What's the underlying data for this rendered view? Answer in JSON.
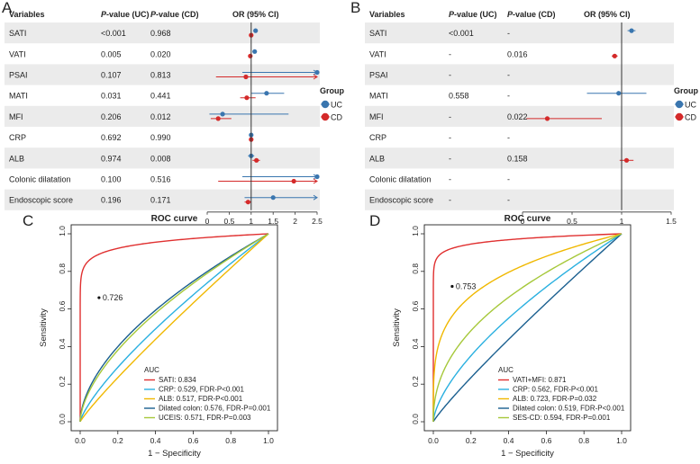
{
  "colors": {
    "uc": "#3a76af",
    "cd": "#d42a2a",
    "band": "#ebebeb"
  },
  "chart_data": [
    {
      "type": "forest",
      "panel_label": "A",
      "columns": [
        "Variables",
        "P-value (UC)",
        "P-value (CD)",
        "OR (95% CI)"
      ],
      "rows": [
        {
          "variable": "SATI",
          "p_uc": "<0.001",
          "p_cd": "0.968",
          "uc": {
            "or": 1.1,
            "lo": 1.06,
            "hi": 1.14
          },
          "cd": {
            "or": 1.0,
            "lo": 0.98,
            "hi": 1.02
          }
        },
        {
          "variable": "VATI",
          "p_uc": "0.005",
          "p_cd": "0.020",
          "uc": {
            "or": 1.08,
            "lo": 1.03,
            "hi": 1.12
          },
          "cd": {
            "or": 0.98,
            "lo": 0.96,
            "hi": 1.0
          }
        },
        {
          "variable": "PSAI",
          "p_uc": "0.107",
          "p_cd": "0.813",
          "uc": {
            "or": 2.6,
            "lo": 0.8,
            "hi": 2.6
          },
          "cd": {
            "or": 0.88,
            "lo": 0.2,
            "hi": 2.6
          }
        },
        {
          "variable": "MATI",
          "p_uc": "0.031",
          "p_cd": "0.441",
          "uc": {
            "or": 1.35,
            "lo": 1.0,
            "hi": 1.75
          },
          "cd": {
            "or": 0.9,
            "lo": 0.75,
            "hi": 1.1
          }
        },
        {
          "variable": "MFI",
          "p_uc": "0.206",
          "p_cd": "0.012",
          "uc": {
            "or": 0.35,
            "lo": 0.05,
            "hi": 1.85
          },
          "cd": {
            "or": 0.25,
            "lo": 0.08,
            "hi": 0.55
          }
        },
        {
          "variable": "CRP",
          "p_uc": "0.692",
          "p_cd": "0.990",
          "uc": {
            "or": 1.0,
            "lo": 0.98,
            "hi": 1.02
          },
          "cd": {
            "or": 1.0,
            "lo": 0.98,
            "hi": 1.02
          }
        },
        {
          "variable": "ALB",
          "p_uc": "0.974",
          "p_cd": "0.008",
          "uc": {
            "or": 1.0,
            "lo": 0.93,
            "hi": 1.07
          },
          "cd": {
            "or": 1.12,
            "lo": 1.03,
            "hi": 1.2
          }
        },
        {
          "variable": "Colonic dilatation",
          "p_uc": "0.100",
          "p_cd": "0.516",
          "uc": {
            "or": 2.6,
            "lo": 0.8,
            "hi": 2.6
          },
          "cd": {
            "or": 1.97,
            "lo": 0.25,
            "hi": 2.6
          }
        },
        {
          "variable": "Endoscopic score",
          "p_uc": "0.196",
          "p_cd": "0.171",
          "uc": {
            "or": 1.5,
            "lo": 0.85,
            "hi": 2.6
          },
          "cd": {
            "or": 0.93,
            "lo": 0.85,
            "hi": 1.0
          }
        }
      ],
      "xlim": [
        0,
        2.5
      ],
      "xticks": [
        "0",
        "0.5",
        "1",
        "1.5",
        "2",
        "2.5"
      ],
      "reference": 1,
      "legend": {
        "title": "Group",
        "entries": [
          "UC",
          "CD"
        ]
      }
    },
    {
      "type": "forest",
      "panel_label": "B",
      "columns": [
        "Variables",
        "P-value (UC)",
        "P-value (CD)",
        "OR (95% CI)"
      ],
      "rows": [
        {
          "variable": "SATI",
          "p_uc": "<0.001",
          "p_cd": "-",
          "uc": {
            "or": 1.1,
            "lo": 1.06,
            "hi": 1.14
          },
          "cd": null
        },
        {
          "variable": "VATI",
          "p_uc": "-",
          "p_cd": "0.016",
          "uc": null,
          "cd": {
            "or": 0.93,
            "lo": 0.9,
            "hi": 0.96
          }
        },
        {
          "variable": "PSAI",
          "p_uc": "-",
          "p_cd": "-",
          "uc": null,
          "cd": null
        },
        {
          "variable": "MATI",
          "p_uc": "0.558",
          "p_cd": "-",
          "uc": {
            "or": 0.97,
            "lo": 0.65,
            "hi": 1.25
          },
          "cd": null
        },
        {
          "variable": "MFI",
          "p_uc": "-",
          "p_cd": "0.022",
          "uc": null,
          "cd": {
            "or": 0.25,
            "lo": 0.04,
            "hi": 0.8
          }
        },
        {
          "variable": "CRP",
          "p_uc": "-",
          "p_cd": "-",
          "uc": null,
          "cd": null
        },
        {
          "variable": "ALB",
          "p_uc": "-",
          "p_cd": "0.158",
          "uc": null,
          "cd": {
            "or": 1.05,
            "lo": 0.98,
            "hi": 1.12
          }
        },
        {
          "variable": "Colonic dilatation",
          "p_uc": "-",
          "p_cd": "-",
          "uc": null,
          "cd": null
        },
        {
          "variable": "Endoscopic score",
          "p_uc": "-",
          "p_cd": "-",
          "uc": null,
          "cd": null
        }
      ],
      "xlim": [
        0,
        1.5
      ],
      "xticks": [
        "0",
        "0.5",
        "1",
        "1.5"
      ],
      "reference": 1,
      "legend": {
        "title": "Group",
        "entries": [
          "UC",
          "CD"
        ]
      }
    },
    {
      "type": "roc",
      "panel_label": "C",
      "title": "ROC curve",
      "xlabel": "1 − Specificity",
      "ylabel": "Sensitivity",
      "xlim": [
        0,
        1
      ],
      "ylim": [
        0,
        1
      ],
      "ticks": [
        "0.0",
        "0.2",
        "0.4",
        "0.6",
        "0.8",
        "1.0"
      ],
      "legend_title": "AUC",
      "cutoff_label": "0.726",
      "cutoff_point": {
        "x": 0.1,
        "y": 0.66
      },
      "series": [
        {
          "name": "SATI: 0.834",
          "color": "#e03030",
          "k": 0.05
        },
        {
          "name": "CRP: 0.529, FDR-P<0.001",
          "color": "#2ab0e0",
          "k": 0.77
        },
        {
          "name": "ALB: 0.517, FDR-P<0.001",
          "color": "#f0b800",
          "k": 0.9
        },
        {
          "name": "Dilated colon: 0.576, FDR-P=0.001",
          "color": "#1a5f8f",
          "k": 0.57
        },
        {
          "name": "UCEIS: 0.571, FDR-P=0.003",
          "color": "#a6c83a",
          "k": 0.6
        }
      ]
    },
    {
      "type": "roc",
      "panel_label": "D",
      "title": "ROC curve",
      "xlabel": "1 − Specificity",
      "ylabel": "Sensitivity",
      "xlim": [
        0,
        1
      ],
      "ylim": [
        0,
        1
      ],
      "ticks": [
        "0.0",
        "0.2",
        "0.4",
        "0.6",
        "0.8",
        "1.0"
      ],
      "legend_title": "AUC",
      "cutoff_label": "0.753",
      "cutoff_point": {
        "x": 0.1,
        "y": 0.72
      },
      "series": [
        {
          "name": "VATI+MFI: 0.871",
          "color": "#e03030",
          "k": 0.035
        },
        {
          "name": "CRP: 0.562, FDR-P<0.001",
          "color": "#2ab0e0",
          "k": 0.65
        },
        {
          "name": "ALB: 0.723, FDR-P=0.032",
          "color": "#f0b800",
          "k": 0.25
        },
        {
          "name": "Dilated colon: 0.519, FDR-P<0.001",
          "color": "#1a5f8f",
          "k": 0.9
        },
        {
          "name": "SES-CD: 0.594, FDR-P=0.001",
          "color": "#a6c83a",
          "k": 0.45
        }
      ]
    }
  ]
}
